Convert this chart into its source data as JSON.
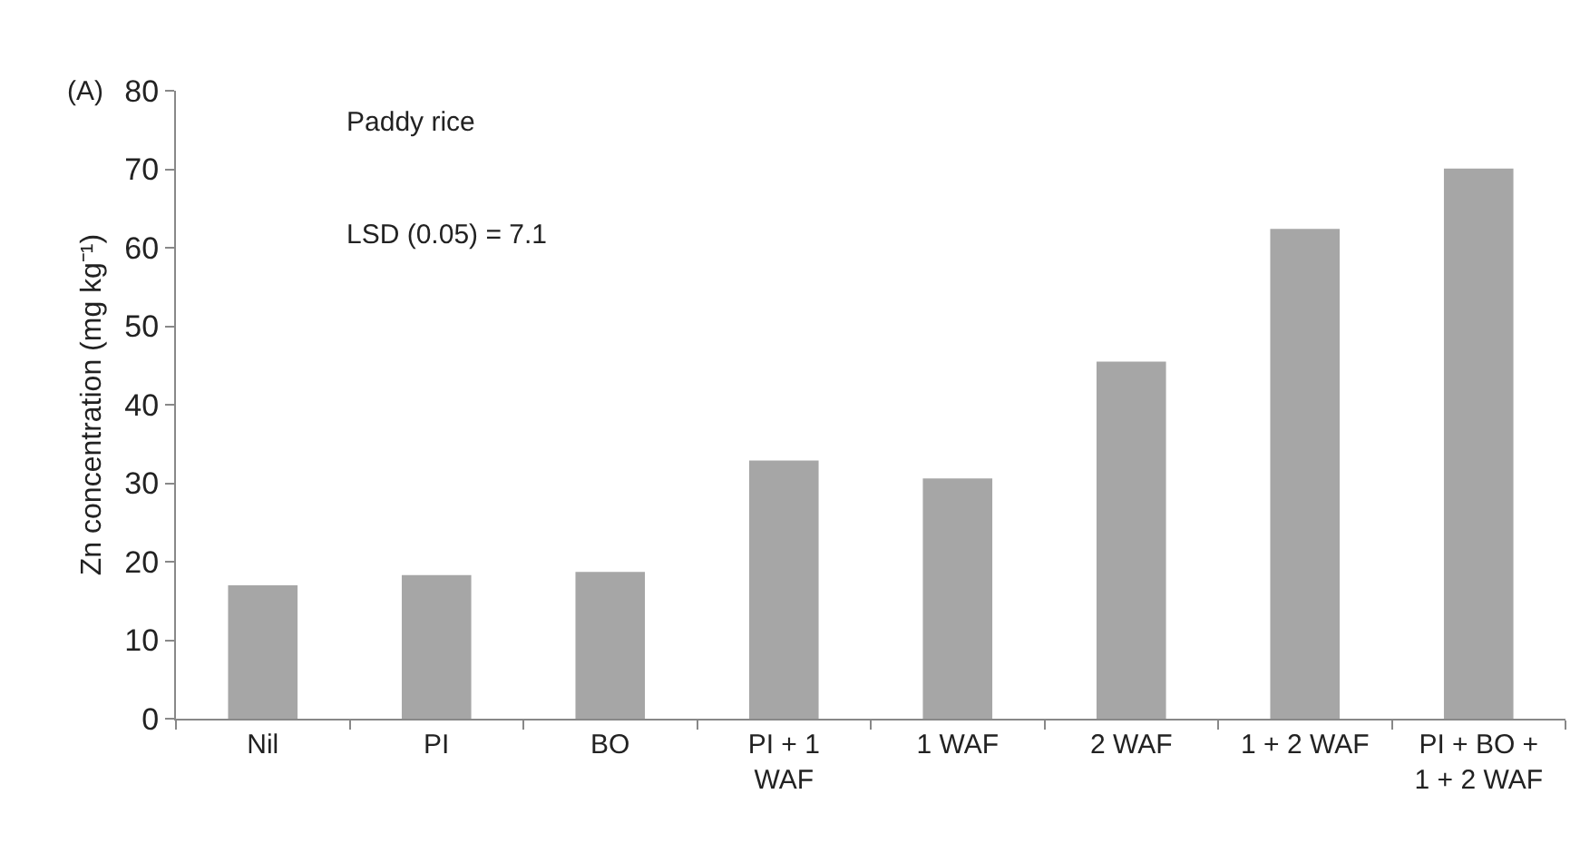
{
  "chart_data": {
    "type": "bar",
    "ylabel": "Zn concentration (mg kg⁻¹)",
    "annotations": [
      "(A)",
      "Paddy rice",
      "LSD (0.05) = 7.1"
    ],
    "categories": [
      "Nil",
      "PI",
      "BO",
      "PI + 1 WAF",
      "1 WAF",
      "2 WAF",
      "1 + 2 WAF",
      "PI + BO + 1 + 2 WAF"
    ],
    "values": [
      17.0,
      18.3,
      18.7,
      32.9,
      30.6,
      45.5,
      62.4,
      70.1
    ],
    "color": "#a6a6a6",
    "ylim": [
      0,
      80
    ],
    "yticks": [
      0,
      10,
      20,
      30,
      40,
      50,
      60,
      70,
      80
    ]
  }
}
